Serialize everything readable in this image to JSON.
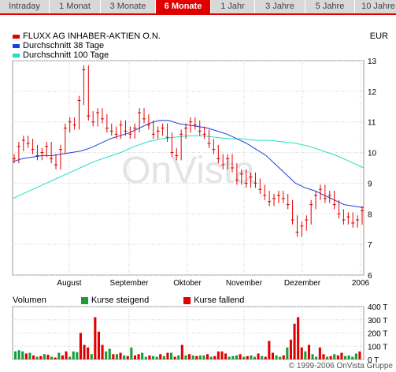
{
  "tabs": [
    {
      "label": "Intraday",
      "active": false,
      "w": 62
    },
    {
      "label": "1 Monat",
      "active": false,
      "w": 64
    },
    {
      "label": "3 Monate",
      "active": false,
      "w": 69
    },
    {
      "label": "6 Monate",
      "active": true,
      "w": 69
    },
    {
      "label": "1 Jahr",
      "active": false,
      "w": 55
    },
    {
      "label": "3 Jahre",
      "active": false,
      "w": 63
    },
    {
      "label": "5 Jahre",
      "active": false,
      "w": 62
    },
    {
      "label": "10 Jahre",
      "active": false,
      "w": 59
    }
  ],
  "legend": {
    "stock": "FLUXX AG INHABER-AKTIEN O.N.",
    "ma38": "Durchschnitt 38 Tage",
    "ma100": "Durchschnitt 100 Tage"
  },
  "currency": "EUR",
  "watermark": "OnVista",
  "volume": {
    "label": "Volumen",
    "rise": "Kurse steigend",
    "fall": "Kurse fallend"
  },
  "copyright": "© 1999-2006 OnVista Gruppe",
  "colors": {
    "stock": "#e00000",
    "ma38": "#1a40e0",
    "ma100": "#20e0c0",
    "rise": "#1a9c3a",
    "fall": "#e00000",
    "active_tab": "#e00000"
  },
  "chart_data": {
    "type": "line",
    "x_labels": [
      "August",
      "September",
      "Oktober",
      "November",
      "Dezember",
      "2006"
    ],
    "ylim": [
      6,
      13
    ],
    "y_ticks": [
      6,
      7,
      8,
      9,
      10,
      11,
      12,
      13
    ],
    "price": [
      9.8,
      10.2,
      10.4,
      10.3,
      10.1,
      9.9,
      10.0,
      10.2,
      9.8,
      9.6,
      10.1,
      10.8,
      11.0,
      10.9,
      11.7,
      12.7,
      11.2,
      11.0,
      11.3,
      11.1,
      10.8,
      10.7,
      10.6,
      10.9,
      10.7,
      10.6,
      10.8,
      11.3,
      11.1,
      10.9,
      10.6,
      10.7,
      10.8,
      10.5,
      10.0,
      9.9,
      10.6,
      10.8,
      11.0,
      10.9,
      10.7,
      10.6,
      10.3,
      10.1,
      9.8,
      9.6,
      9.8,
      9.5,
      9.1,
      9.3,
      9.0,
      9.2,
      9.0,
      8.8,
      8.6,
      8.4,
      8.5,
      8.6,
      8.5,
      8.3,
      7.8,
      7.4,
      7.6,
      7.8,
      8.3,
      8.6,
      8.8,
      8.5,
      8.6,
      8.3,
      8.0,
      7.8,
      7.9,
      7.7,
      7.8,
      8.1
    ],
    "ma38": [
      9.7,
      9.8,
      9.85,
      9.9,
      9.9,
      9.95,
      10.0,
      10.05,
      10.15,
      10.3,
      10.45,
      10.55,
      10.65,
      10.8,
      10.95,
      11.05,
      11.05,
      10.95,
      10.9,
      10.85,
      10.8,
      10.7,
      10.6,
      10.45,
      10.3,
      10.1,
      9.9,
      9.6,
      9.3,
      9.0,
      8.85,
      8.75,
      8.6,
      8.45,
      8.3,
      8.25,
      8.2
    ],
    "ma100": [
      8.5,
      8.7,
      8.9,
      9.1,
      9.3,
      9.5,
      9.7,
      9.85,
      10.0,
      10.2,
      10.35,
      10.45,
      10.5,
      10.55,
      10.55,
      10.5,
      10.45,
      10.45,
      10.4,
      10.4,
      10.35,
      10.3,
      10.2,
      10.05,
      9.9,
      9.7,
      9.5
    ],
    "volume_ylim": [
      0,
      400
    ],
    "volume_ticks": [
      "400 T",
      "300 T",
      "200 T",
      "100 T",
      "0 T"
    ],
    "volume": [
      [
        60,
        1
      ],
      [
        70,
        1
      ],
      [
        60,
        1
      ],
      [
        45,
        0
      ],
      [
        50,
        1
      ],
      [
        30,
        0
      ],
      [
        20,
        1
      ],
      [
        25,
        0
      ],
      [
        40,
        1
      ],
      [
        35,
        0
      ],
      [
        20,
        1
      ],
      [
        15,
        0
      ],
      [
        50,
        1
      ],
      [
        30,
        0
      ],
      [
        60,
        0
      ],
      [
        20,
        1
      ],
      [
        60,
        1
      ],
      [
        55,
        1
      ],
      [
        200,
        0
      ],
      [
        110,
        0
      ],
      [
        90,
        0
      ],
      [
        40,
        1
      ],
      [
        320,
        0
      ],
      [
        210,
        0
      ],
      [
        110,
        0
      ],
      [
        60,
        1
      ],
      [
        80,
        1
      ],
      [
        40,
        0
      ],
      [
        40,
        1
      ],
      [
        50,
        0
      ],
      [
        30,
        1
      ],
      [
        25,
        0
      ],
      [
        90,
        1
      ],
      [
        30,
        0
      ],
      [
        40,
        0
      ],
      [
        50,
        1
      ],
      [
        20,
        1
      ],
      [
        30,
        0
      ],
      [
        25,
        1
      ],
      [
        20,
        1
      ],
      [
        40,
        0
      ],
      [
        25,
        1
      ],
      [
        50,
        0
      ],
      [
        50,
        1
      ],
      [
        20,
        0
      ],
      [
        30,
        1
      ],
      [
        110,
        0
      ],
      [
        30,
        1
      ],
      [
        40,
        0
      ],
      [
        30,
        1
      ],
      [
        25,
        0
      ],
      [
        30,
        1
      ],
      [
        30,
        1
      ],
      [
        40,
        0
      ],
      [
        20,
        1
      ],
      [
        25,
        0
      ],
      [
        60,
        0
      ],
      [
        60,
        0
      ],
      [
        45,
        0
      ],
      [
        20,
        1
      ],
      [
        25,
        1
      ],
      [
        30,
        1
      ],
      [
        40,
        0
      ],
      [
        20,
        1
      ],
      [
        25,
        0
      ],
      [
        30,
        1
      ],
      [
        20,
        1
      ],
      [
        45,
        0
      ],
      [
        25,
        1
      ],
      [
        20,
        0
      ],
      [
        140,
        0
      ],
      [
        50,
        0
      ],
      [
        30,
        1
      ],
      [
        20,
        1
      ],
      [
        30,
        0
      ],
      [
        90,
        1
      ],
      [
        150,
        0
      ],
      [
        270,
        0
      ],
      [
        320,
        0
      ],
      [
        90,
        0
      ],
      [
        60,
        1
      ],
      [
        110,
        0
      ],
      [
        40,
        1
      ],
      [
        20,
        1
      ],
      [
        90,
        0
      ],
      [
        40,
        0
      ],
      [
        20,
        1
      ],
      [
        25,
        0
      ],
      [
        40,
        1
      ],
      [
        30,
        0
      ],
      [
        50,
        0
      ],
      [
        25,
        1
      ],
      [
        30,
        1
      ],
      [
        20,
        1
      ],
      [
        45,
        1
      ],
      [
        60,
        0
      ]
    ]
  }
}
